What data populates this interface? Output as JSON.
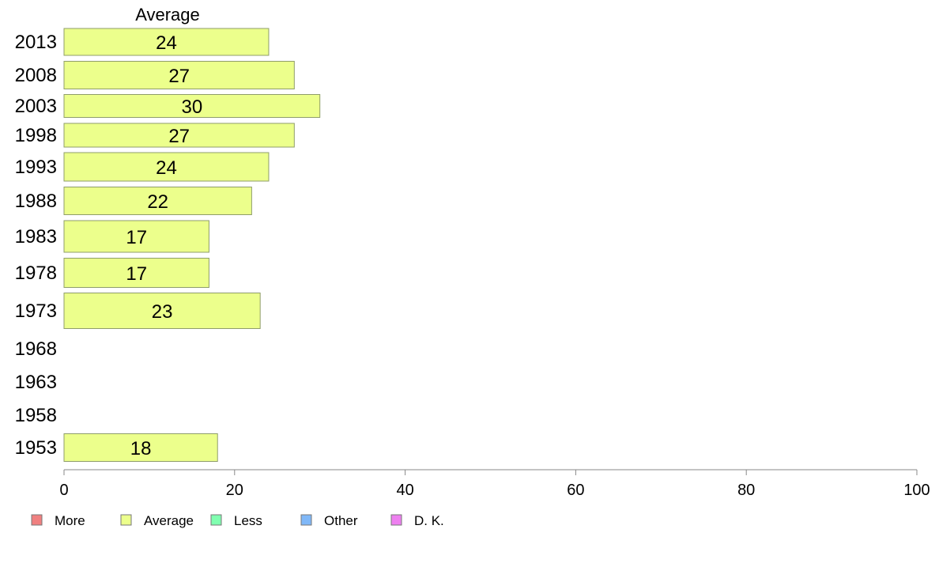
{
  "chart_data": {
    "type": "bar",
    "orientation": "horizontal",
    "categories": [
      "2013",
      "2008",
      "2003",
      "1998",
      "1993",
      "1988",
      "1983",
      "1978",
      "1973",
      "1968",
      "1963",
      "1958",
      "1953"
    ],
    "series": [
      {
        "name": "More",
        "color": "#f08080",
        "values": [
          null,
          null,
          null,
          null,
          null,
          null,
          null,
          null,
          null,
          null,
          null,
          null,
          null
        ]
      },
      {
        "name": "Average",
        "color": "#ecff8c",
        "values": [
          24,
          27,
          30,
          27,
          24,
          22,
          17,
          17,
          23,
          null,
          null,
          null,
          18
        ]
      },
      {
        "name": "Less",
        "color": "#80ffb0",
        "values": [
          null,
          null,
          null,
          null,
          null,
          null,
          null,
          null,
          null,
          null,
          null,
          null,
          null
        ]
      },
      {
        "name": "Other",
        "color": "#80b8f8",
        "values": [
          null,
          null,
          null,
          null,
          null,
          null,
          null,
          null,
          null,
          null,
          null,
          null,
          null
        ]
      },
      {
        "name": "D. K.",
        "color": "#ee80f0",
        "values": [
          null,
          null,
          null,
          null,
          null,
          null,
          null,
          null,
          null,
          null,
          null,
          null,
          null
        ]
      }
    ],
    "series_header": "Average",
    "xlim": [
      0,
      100
    ],
    "xticks": [
      0,
      20,
      40,
      60,
      80,
      100
    ],
    "grid": false,
    "legend_position": "bottom-left"
  }
}
